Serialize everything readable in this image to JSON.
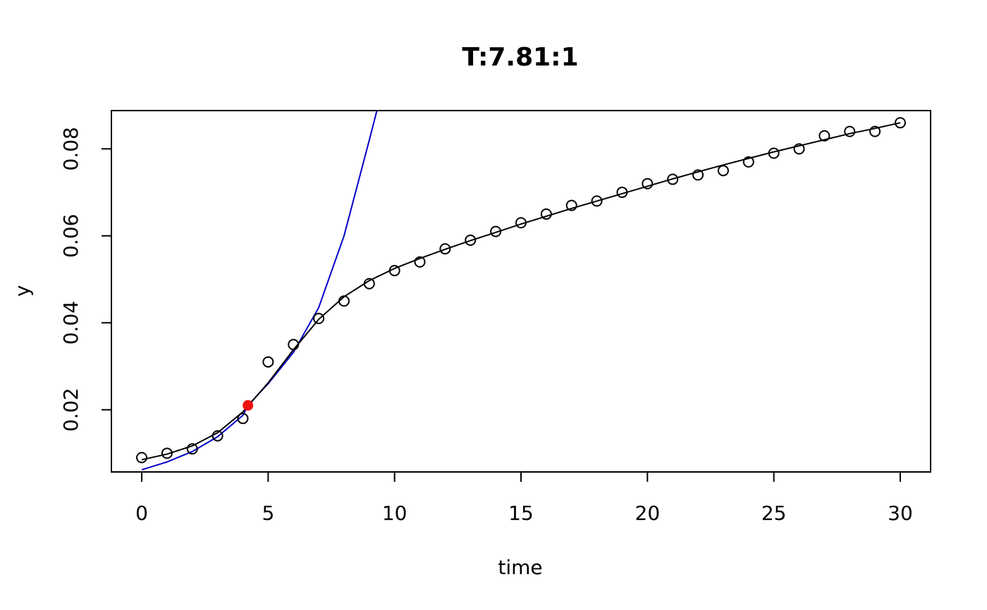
{
  "chart_data": {
    "type": "scatter",
    "title": "T:7.81:1",
    "xlabel": "time",
    "ylabel": "y",
    "xlim": [
      -1.2,
      31.2
    ],
    "ylim": [
      0.0057,
      0.0888
    ],
    "x_ticks": [
      0,
      5,
      10,
      15,
      20,
      25,
      30
    ],
    "x_tick_labels": [
      "0",
      "5",
      "10",
      "15",
      "20",
      "25",
      "30"
    ],
    "y_ticks": [
      0.02,
      0.04,
      0.06,
      0.08
    ],
    "y_tick_labels": [
      "0.02",
      "0.04",
      "0.06",
      "0.08"
    ],
    "grid": false,
    "legend": "none",
    "observations": {
      "x": [
        0,
        1,
        2,
        3,
        4,
        5,
        6,
        7,
        8,
        9,
        10,
        11,
        12,
        13,
        14,
        15,
        16,
        17,
        18,
        19,
        20,
        21,
        22,
        23,
        24,
        25,
        26,
        27,
        28,
        29,
        30
      ],
      "y": [
        0.009,
        0.01,
        0.011,
        0.014,
        0.018,
        0.031,
        0.035,
        0.041,
        0.045,
        0.049,
        0.052,
        0.054,
        0.057,
        0.059,
        0.061,
        0.063,
        0.065,
        0.067,
        0.068,
        0.07,
        0.072,
        0.073,
        0.074,
        0.075,
        0.077,
        0.079,
        0.08,
        0.083,
        0.084,
        0.084,
        0.086
      ],
      "color": "#000000"
    },
    "fit_curve": {
      "x": [
        0,
        1,
        2,
        3,
        4,
        5,
        6,
        7,
        8,
        9,
        10,
        11,
        12,
        13,
        14,
        15,
        16,
        17,
        18,
        19,
        20,
        21,
        22,
        23,
        24,
        25,
        26,
        27,
        28,
        29,
        30
      ],
      "y": [
        0.0085,
        0.0098,
        0.0117,
        0.0147,
        0.0195,
        0.0262,
        0.0338,
        0.0408,
        0.046,
        0.0497,
        0.0525,
        0.0548,
        0.0569,
        0.0589,
        0.0608,
        0.0627,
        0.0645,
        0.0663,
        0.068,
        0.0697,
        0.0714,
        0.0731,
        0.0747,
        0.0763,
        0.0778,
        0.0793,
        0.0807,
        0.0821,
        0.0835,
        0.0847,
        0.086
      ],
      "color": "#000000"
    },
    "tangent_curve": {
      "x": [
        0,
        1,
        2,
        3,
        4,
        4.2,
        5,
        6,
        7,
        8,
        9,
        9.3
      ],
      "y": [
        0.0062,
        0.008,
        0.0104,
        0.0138,
        0.0187,
        0.021,
        0.026,
        0.0332,
        0.0435,
        0.06,
        0.082,
        0.0888
      ],
      "color": "#0000cc"
    },
    "max_rate_point": {
      "x": 4.2,
      "y": 0.021,
      "color": "#ee1111"
    }
  }
}
